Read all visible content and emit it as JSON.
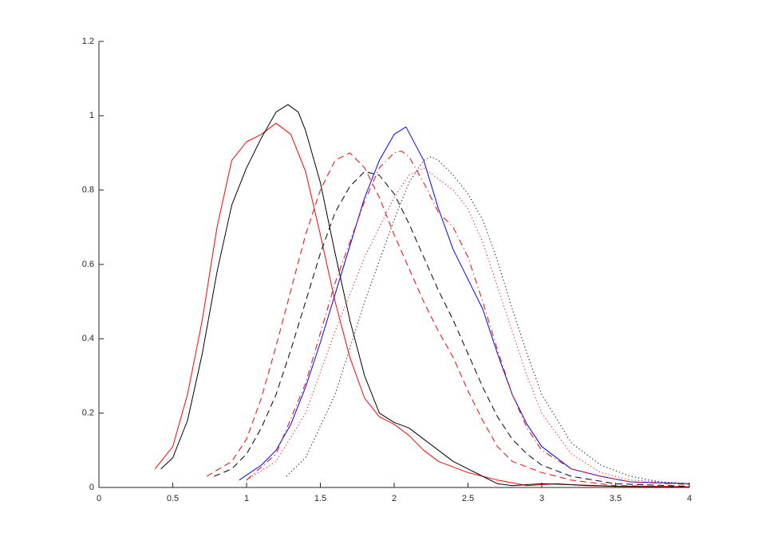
{
  "chart_data": {
    "type": "line",
    "xlim": [
      0,
      4
    ],
    "xticks": [
      0,
      0.5,
      1,
      1.5,
      2,
      2.5,
      3,
      3.5,
      4
    ],
    "ylim": [
      0,
      1.2
    ],
    "yticks": [
      0,
      0.2,
      0.4,
      0.6,
      0.8,
      1,
      1.2
    ],
    "grid": false,
    "series": [
      {
        "color": "#ff0000",
        "dash": "solid",
        "x": [
          0.38,
          0.5,
          0.6,
          0.7,
          0.8,
          0.9,
          1.0,
          1.1,
          1.2,
          1.3,
          1.4,
          1.5,
          1.6,
          1.7,
          1.8,
          1.9,
          2.0,
          2.1,
          2.2,
          2.3,
          2.5,
          2.7,
          2.9,
          3.1,
          3.3,
          3.5,
          4.0
        ],
        "values": [
          0.05,
          0.11,
          0.25,
          0.45,
          0.7,
          0.88,
          0.93,
          0.95,
          0.98,
          0.95,
          0.85,
          0.68,
          0.5,
          0.35,
          0.24,
          0.19,
          0.17,
          0.14,
          0.1,
          0.07,
          0.04,
          0.02,
          0.005,
          0.01,
          0.005,
          0.003,
          0.002
        ]
      },
      {
        "color": "#000000",
        "dash": "solid",
        "x": [
          0.42,
          0.5,
          0.6,
          0.7,
          0.8,
          0.9,
          1.0,
          1.1,
          1.2,
          1.28,
          1.35,
          1.4,
          1.5,
          1.6,
          1.7,
          1.8,
          1.9,
          2.0,
          2.1,
          2.2,
          2.3,
          2.4,
          2.5,
          2.6,
          2.7,
          2.8,
          3.0,
          3.5,
          4.0
        ],
        "values": [
          0.05,
          0.08,
          0.18,
          0.36,
          0.58,
          0.76,
          0.86,
          0.94,
          1.01,
          1.03,
          1.01,
          0.96,
          0.82,
          0.63,
          0.45,
          0.3,
          0.2,
          0.175,
          0.16,
          0.13,
          0.1,
          0.07,
          0.05,
          0.03,
          0.01,
          0.005,
          0.01,
          0.003,
          0.002
        ]
      },
      {
        "color": "#ff0000",
        "dash": "dashed",
        "x": [
          0.73,
          0.9,
          1.0,
          1.1,
          1.2,
          1.3,
          1.4,
          1.5,
          1.6,
          1.7,
          1.8,
          1.9,
          2.0,
          2.1,
          2.2,
          2.3,
          2.4,
          2.5,
          2.6,
          2.7,
          2.8,
          3.0,
          3.2,
          3.5,
          4.0
        ],
        "values": [
          0.03,
          0.07,
          0.13,
          0.24,
          0.38,
          0.53,
          0.68,
          0.8,
          0.88,
          0.9,
          0.86,
          0.78,
          0.68,
          0.59,
          0.5,
          0.42,
          0.35,
          0.26,
          0.18,
          0.11,
          0.07,
          0.04,
          0.02,
          0.005,
          0.002
        ]
      },
      {
        "color": "#000000",
        "dash": "dashed",
        "x": [
          0.78,
          0.9,
          1.0,
          1.1,
          1.2,
          1.3,
          1.4,
          1.5,
          1.6,
          1.7,
          1.8,
          1.9,
          2.0,
          2.1,
          2.2,
          2.3,
          2.4,
          2.5,
          2.6,
          2.7,
          2.8,
          2.9,
          3.0,
          3.2,
          3.5,
          4.0
        ],
        "values": [
          0.03,
          0.05,
          0.09,
          0.16,
          0.25,
          0.37,
          0.5,
          0.63,
          0.74,
          0.81,
          0.85,
          0.84,
          0.79,
          0.71,
          0.62,
          0.53,
          0.45,
          0.36,
          0.27,
          0.19,
          0.13,
          0.09,
          0.06,
          0.03,
          0.01,
          0.003
        ]
      },
      {
        "color": "#0000ff",
        "dash": "solid",
        "x": [
          0.95,
          1.1,
          1.2,
          1.3,
          1.4,
          1.5,
          1.6,
          1.7,
          1.8,
          1.9,
          2.0,
          2.08,
          2.2,
          2.3,
          2.4,
          2.5,
          2.6,
          2.7,
          2.8,
          2.9,
          3.0,
          3.2,
          3.4,
          3.6,
          4.0
        ],
        "values": [
          0.02,
          0.06,
          0.1,
          0.17,
          0.27,
          0.39,
          0.52,
          0.65,
          0.78,
          0.88,
          0.95,
          0.97,
          0.88,
          0.75,
          0.64,
          0.56,
          0.48,
          0.36,
          0.25,
          0.17,
          0.11,
          0.05,
          0.03,
          0.015,
          0.01
        ]
      },
      {
        "color": "#ff0000",
        "dash": "dashdot",
        "x": [
          1.0,
          1.2,
          1.4,
          1.6,
          1.8,
          1.9,
          2.0,
          2.05,
          2.1,
          2.2,
          2.3,
          2.4,
          2.5,
          2.6,
          2.7,
          2.8,
          2.9,
          3.0,
          3.2,
          3.4,
          3.6,
          4.0
        ],
        "values": [
          0.02,
          0.09,
          0.28,
          0.55,
          0.77,
          0.86,
          0.9,
          0.905,
          0.89,
          0.82,
          0.74,
          0.7,
          0.62,
          0.5,
          0.37,
          0.25,
          0.16,
          0.1,
          0.05,
          0.03,
          0.015,
          0.008
        ]
      },
      {
        "color": "#ff0000",
        "dash": "dotted",
        "x": [
          1.0,
          1.2,
          1.4,
          1.6,
          1.8,
          2.0,
          2.1,
          2.2,
          2.3,
          2.4,
          2.5,
          2.6,
          2.7,
          2.8,
          2.9,
          3.0,
          3.2,
          3.4,
          3.6,
          4.0
        ],
        "values": [
          0.02,
          0.07,
          0.2,
          0.42,
          0.62,
          0.78,
          0.84,
          0.86,
          0.83,
          0.8,
          0.75,
          0.66,
          0.54,
          0.42,
          0.3,
          0.2,
          0.09,
          0.04,
          0.02,
          0.01
        ]
      },
      {
        "color": "#000000",
        "dash": "dotted",
        "x": [
          1.27,
          1.4,
          1.6,
          1.8,
          2.0,
          2.1,
          2.2,
          2.25,
          2.3,
          2.4,
          2.5,
          2.6,
          2.7,
          2.8,
          2.9,
          3.0,
          3.2,
          3.4,
          3.6,
          3.8,
          4.0
        ],
        "values": [
          0.03,
          0.08,
          0.25,
          0.5,
          0.72,
          0.82,
          0.88,
          0.89,
          0.88,
          0.84,
          0.79,
          0.72,
          0.61,
          0.48,
          0.36,
          0.25,
          0.12,
          0.06,
          0.03,
          0.015,
          0.01
        ]
      }
    ]
  }
}
